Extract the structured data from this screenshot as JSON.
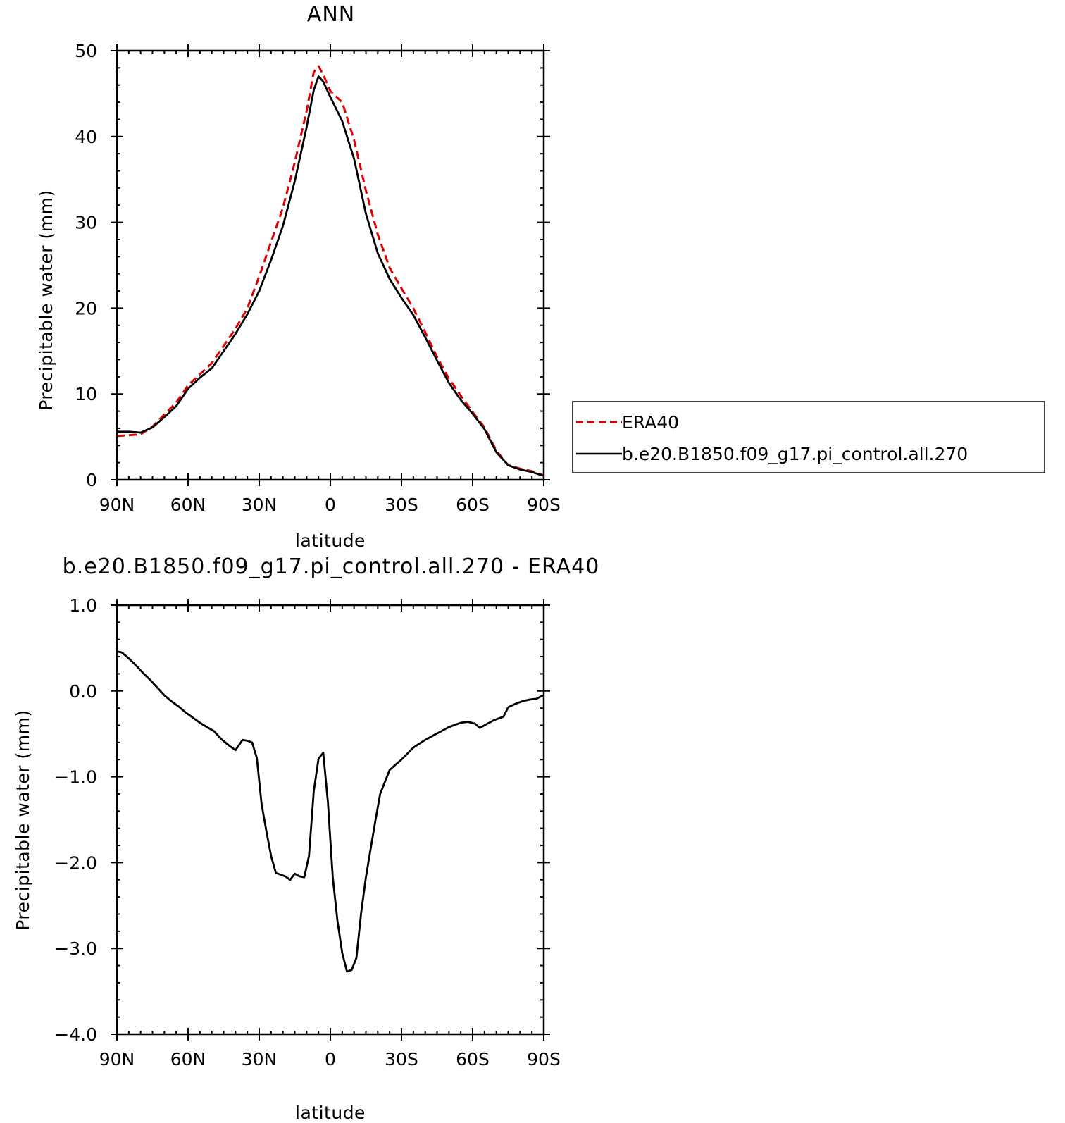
{
  "chart_data": [
    {
      "type": "line",
      "title": "ANN",
      "xlabel": "latitude",
      "ylabel": "Precipitable water (mm)",
      "xlim": [
        90,
        -90
      ],
      "ylim": [
        0,
        50
      ],
      "x_ticks": [
        {
          "value": 90,
          "label": "90N"
        },
        {
          "value": 60,
          "label": "60N"
        },
        {
          "value": 30,
          "label": "30N"
        },
        {
          "value": 0,
          "label": "0"
        },
        {
          "value": -30,
          "label": "30S"
        },
        {
          "value": -60,
          "label": "60S"
        },
        {
          "value": -90,
          "label": "90S"
        }
      ],
      "y_ticks": [
        {
          "value": 0,
          "label": "0"
        },
        {
          "value": 10,
          "label": "10"
        },
        {
          "value": 20,
          "label": "20"
        },
        {
          "value": 30,
          "label": "30"
        },
        {
          "value": 40,
          "label": "40"
        },
        {
          "value": 50,
          "label": "50"
        }
      ],
      "grid": false,
      "legend_position": "right",
      "series": [
        {
          "name": "ERA40",
          "color": "#e00000",
          "style": "dashed",
          "x": [
            90,
            85,
            80,
            75,
            70,
            65,
            60,
            55,
            50,
            45,
            40,
            35,
            30,
            25,
            20,
            15,
            10,
            7,
            5,
            3,
            0,
            -5,
            -10,
            -15,
            -20,
            -25,
            -30,
            -35,
            -40,
            -45,
            -50,
            -55,
            -60,
            -65,
            -70,
            -75,
            -80,
            -85,
            -90
          ],
          "y": [
            5.1,
            5.2,
            5.3,
            6.2,
            7.6,
            9.0,
            11.0,
            12.3,
            13.6,
            15.6,
            17.6,
            20.0,
            23.7,
            27.7,
            31.7,
            37.0,
            43.0,
            47.5,
            48.2,
            47.2,
            45.3,
            44.0,
            39.6,
            33.7,
            28.6,
            24.7,
            22.3,
            20.0,
            17.2,
            14.3,
            11.8,
            9.8,
            7.9,
            6.1,
            3.4,
            1.7,
            1.3,
            1.0,
            0.5
          ]
        },
        {
          "name": "b.e20.B1850.f09_g17.pi_control.all.270",
          "color": "#000000",
          "style": "solid",
          "x": [
            90,
            85,
            80,
            75,
            70,
            65,
            60,
            55,
            50,
            45,
            40,
            35,
            30,
            25,
            20,
            15,
            10,
            7,
            5,
            3,
            0,
            -5,
            -10,
            -15,
            -20,
            -25,
            -30,
            -35,
            -40,
            -45,
            -50,
            -55,
            -60,
            -65,
            -70,
            -75,
            -80,
            -85,
            -90
          ],
          "y": [
            5.6,
            5.6,
            5.5,
            6.1,
            7.3,
            8.6,
            10.6,
            11.9,
            13.0,
            15.0,
            17.0,
            19.3,
            22.0,
            25.6,
            29.6,
            34.8,
            41.1,
            45.4,
            47.0,
            46.4,
            44.6,
            41.8,
            37.4,
            31.0,
            26.4,
            23.4,
            21.2,
            19.2,
            16.6,
            13.9,
            11.3,
            9.3,
            7.7,
            5.9,
            3.2,
            1.7,
            1.2,
            0.9,
            0.45
          ]
        }
      ]
    },
    {
      "type": "line",
      "title": "b.e20.B1850.f09_g17.pi_control.all.270 - ERA40",
      "xlabel": "latitude",
      "ylabel": "Precipitable water (mm)",
      "xlim": [
        90,
        -90
      ],
      "ylim": [
        -4.0,
        1.0
      ],
      "x_ticks": [
        {
          "value": 90,
          "label": "90N"
        },
        {
          "value": 60,
          "label": "60N"
        },
        {
          "value": 30,
          "label": "30N"
        },
        {
          "value": 0,
          "label": "0"
        },
        {
          "value": -30,
          "label": "30S"
        },
        {
          "value": -60,
          "label": "60S"
        },
        {
          "value": -90,
          "label": "90S"
        }
      ],
      "y_ticks": [
        {
          "value": 1.0,
          "label": "1.0"
        },
        {
          "value": 0.0,
          "label": "0.0"
        },
        {
          "value": -1.0,
          "label": "-1.0"
        },
        {
          "value": -2.0,
          "label": "-2.0"
        },
        {
          "value": -3.0,
          "label": "-3.0"
        },
        {
          "value": -4.0,
          "label": "-4.0"
        }
      ],
      "grid": false,
      "series": [
        {
          "color": "#000000",
          "style": "solid",
          "x": [
            90,
            88,
            85,
            82,
            79,
            76,
            73,
            70,
            67,
            64,
            61,
            58,
            55,
            52,
            49,
            46,
            43,
            40,
            37,
            35,
            33,
            31,
            29,
            27,
            25,
            23,
            21,
            19,
            17,
            15,
            13,
            11,
            9,
            7,
            5,
            3,
            1,
            -1,
            -3,
            -5,
            -7,
            -9,
            -11,
            -13,
            -15,
            -17,
            -19,
            -21,
            -23,
            -25,
            -27,
            -30,
            -35,
            -40,
            -42,
            -44,
            -46,
            -50,
            -55,
            -58,
            -61,
            -63,
            -65,
            -69,
            -73,
            -75,
            -78,
            -81,
            -84,
            -87,
            -89,
            -90
          ],
          "y": [
            0.46,
            0.45,
            0.38,
            0.3,
            0.21,
            0.13,
            0.04,
            -0.05,
            -0.12,
            -0.18,
            -0.25,
            -0.31,
            -0.37,
            -0.42,
            -0.47,
            -0.56,
            -0.63,
            -0.69,
            -0.57,
            -0.58,
            -0.6,
            -0.78,
            -1.32,
            -1.63,
            -1.92,
            -2.12,
            -2.14,
            -2.16,
            -2.2,
            -2.13,
            -2.16,
            -2.17,
            -1.92,
            -1.17,
            -0.79,
            -0.72,
            -1.3,
            -2.17,
            -2.68,
            -3.05,
            -3.27,
            -3.25,
            -3.11,
            -2.58,
            -2.17,
            -1.84,
            -1.51,
            -1.2,
            -1.06,
            -0.92,
            -0.87,
            -0.8,
            -0.66,
            -0.57,
            -0.54,
            -0.51,
            -0.48,
            -0.42,
            -0.37,
            -0.36,
            -0.38,
            -0.43,
            -0.4,
            -0.34,
            -0.3,
            -0.19,
            -0.15,
            -0.12,
            -0.1,
            -0.09,
            -0.06,
            -0.06
          ]
        }
      ]
    }
  ]
}
